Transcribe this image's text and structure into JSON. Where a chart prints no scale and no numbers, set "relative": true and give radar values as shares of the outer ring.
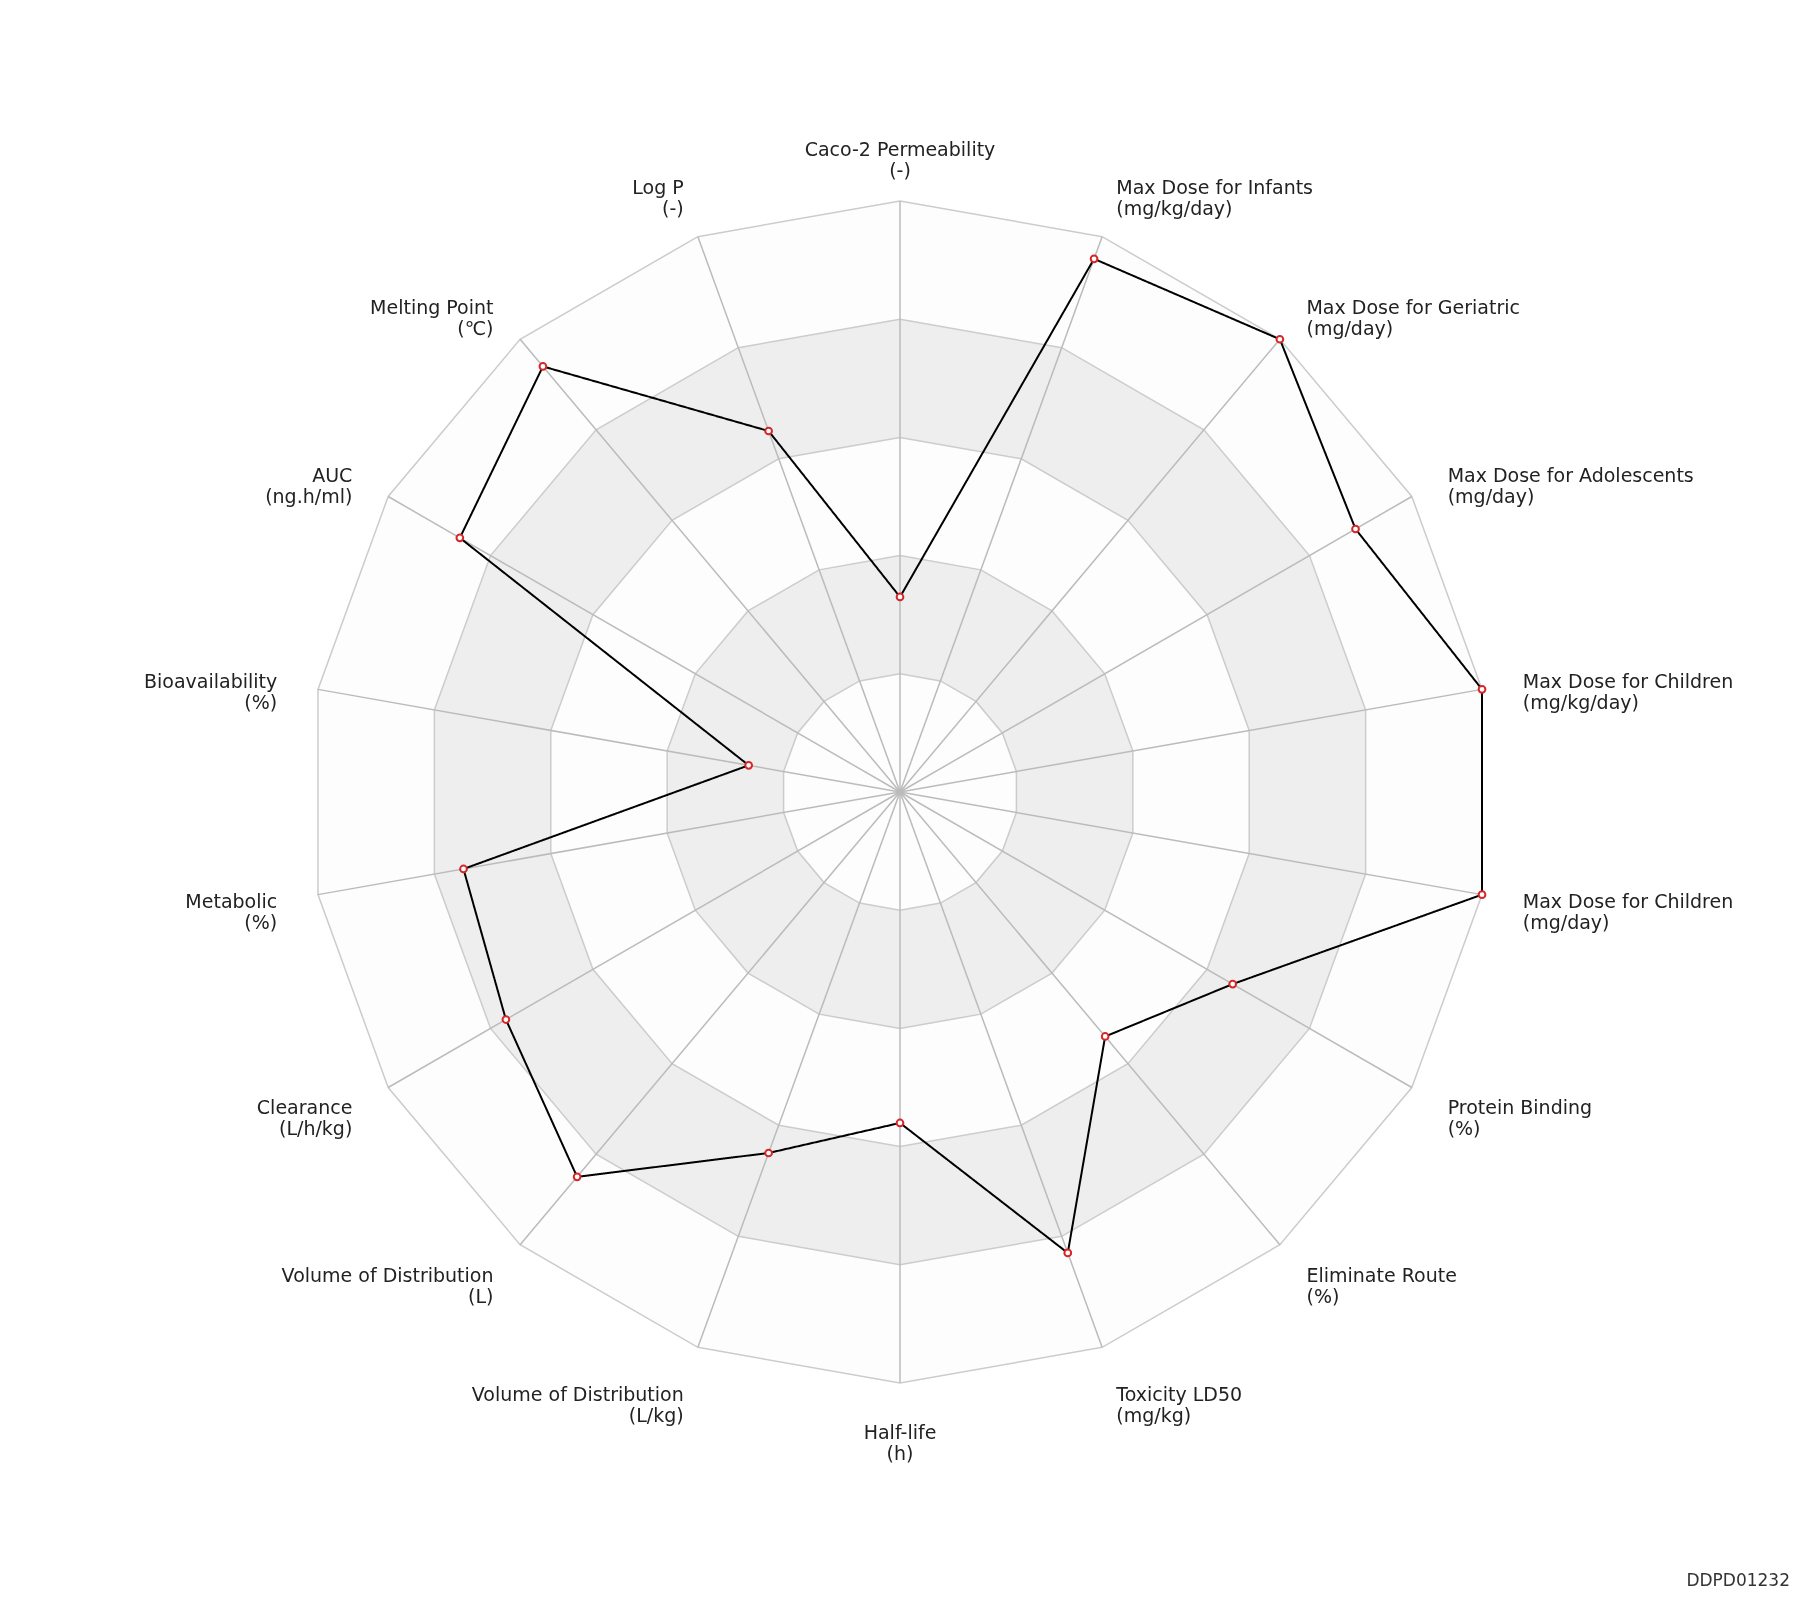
{
  "chart_data": {
    "type": "radar",
    "relative": true,
    "grid": true,
    "marker": "circle",
    "line_style": "solid",
    "categories": [
      "Caco-2 Permeability\n(-)",
      "Max Dose for Infants\n(mg/kg/day)",
      "Max Dose for Geriatric\n(mg/day)",
      "Max Dose for Adolescents\n(mg/day)",
      "Max Dose for Children\n(mg/kg/day)",
      "Max Dose for Children\n(mg/day)",
      "Protein Binding\n(%)",
      "Eliminate Route\n(%)",
      "Toxicity LD50\n(mg/kg)",
      "Half-life\n(h)",
      "Volume of Distribution\n(L/kg)",
      "Volume of Distribution\n(L)",
      "Clearance\n(L/h/kg)",
      "Metabolic\n(%)",
      "Bioavailability\n(%)",
      "AUC\n(ng.h/ml)",
      "Melting Point\n(℃)",
      "Log P\n(-)"
    ],
    "series": [
      {
        "color": "#000000",
        "values": [
          0.33,
          0.96,
          1.0,
          0.89,
          1.0,
          1.0,
          0.65,
          0.54,
          0.83,
          0.56,
          0.65,
          0.85,
          0.77,
          0.75,
          0.26,
          0.86,
          0.94,
          0.65
        ]
      }
    ],
    "annotations": [
      "DDPD01232"
    ]
  }
}
